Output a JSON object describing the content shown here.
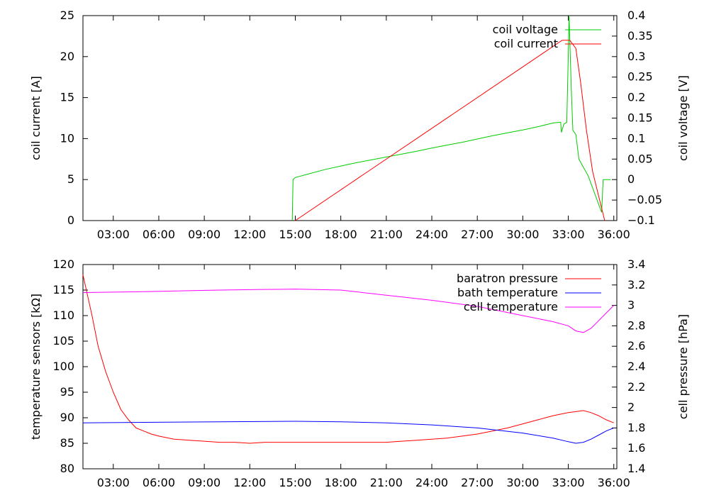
{
  "chart_data": [
    {
      "type": "line",
      "x_ticks": [
        "03:00",
        "06:00",
        "09:00",
        "12:00",
        "15:00",
        "18:00",
        "21:00",
        "24:00",
        "27:00",
        "30:00",
        "33:00",
        "36:00"
      ],
      "xlim_hours": [
        1,
        36.2
      ],
      "ylabel_left": "coil current [A]",
      "ylabel_right": "coil voltage [V]",
      "ylim_left": [
        0,
        25
      ],
      "ylim_right": [
        -0.1,
        0.4
      ],
      "yticks_left": [
        "0",
        "5",
        "10",
        "15",
        "20",
        "25"
      ],
      "yticks_right": [
        "−0.1",
        "−0.05",
        "0",
        "0.05",
        "0.1",
        "0.15",
        "0.2",
        "0.25",
        "0.3",
        "0.35",
        "0.4"
      ],
      "legend_position": "top-right",
      "series": [
        {
          "name": "coil voltage",
          "axis": "right",
          "color": "#00cc00",
          "x": [
            14.8,
            14.85,
            15.0,
            16.0,
            17.0,
            18.0,
            19.0,
            20.0,
            21.0,
            22.0,
            23.0,
            24.0,
            25.0,
            26.0,
            27.0,
            28.0,
            29.0,
            30.0,
            31.0,
            32.0,
            32.5,
            32.55,
            32.7,
            32.9,
            33.0,
            33.05,
            33.2,
            33.3,
            33.5,
            33.7,
            34.0,
            34.3,
            34.7,
            35.0,
            35.2,
            35.3,
            35.8
          ],
          "y": [
            -0.1,
            0.0,
            0.005,
            0.015,
            0.025,
            0.033,
            0.041,
            0.048,
            0.055,
            0.062,
            0.069,
            0.077,
            0.084,
            0.091,
            0.099,
            0.107,
            0.114,
            0.121,
            0.129,
            0.138,
            0.14,
            0.115,
            0.135,
            0.14,
            0.3,
            0.4,
            0.22,
            0.12,
            0.11,
            0.05,
            0.03,
            0.01,
            -0.03,
            -0.06,
            -0.08,
            0.0,
            0.0
          ]
        },
        {
          "name": "coil current",
          "axis": "left",
          "color": "#ff0000",
          "x": [
            15.0,
            32.6,
            33.1,
            33.5,
            33.8,
            34.2,
            34.6,
            35.0,
            35.4
          ],
          "y": [
            0,
            22,
            22,
            21,
            17,
            11,
            6,
            3,
            0
          ]
        }
      ]
    },
    {
      "type": "line",
      "x_ticks": [
        "03:00",
        "06:00",
        "09:00",
        "12:00",
        "15:00",
        "18:00",
        "21:00",
        "24:00",
        "27:00",
        "30:00",
        "33:00",
        "36:00"
      ],
      "xlim_hours": [
        1,
        36.2
      ],
      "ylabel_left": "temperature sensors [kΩ]",
      "ylabel_right": "cell pressure [hPa]",
      "ylim_left": [
        80,
        120
      ],
      "ylim_right": [
        1.4,
        3.4
      ],
      "yticks_left": [
        "80",
        "85",
        "90",
        "95",
        "100",
        "105",
        "110",
        "115",
        "120"
      ],
      "yticks_right": [
        "1.4",
        "1.6",
        "1.8",
        "2",
        "2.2",
        "2.4",
        "2.6",
        "2.8",
        "3",
        "3.2",
        "3.4"
      ],
      "legend_position": "top-right",
      "series": [
        {
          "name": "baratron pressure",
          "axis": "right",
          "color": "#ff0000",
          "x": [
            1.0,
            1.3,
            1.6,
            2.0,
            2.5,
            3.0,
            3.5,
            4.0,
            4.5,
            5.0,
            5.5,
            6.0,
            7.0,
            8.0,
            9.0,
            10.0,
            11.0,
            12.0,
            13.0,
            14.0,
            15.0,
            16.0,
            17.0,
            18.0,
            19.0,
            20.0,
            21.0,
            22.0,
            23.0,
            24.0,
            25.0,
            26.0,
            27.0,
            28.0,
            29.0,
            30.0,
            31.0,
            32.0,
            33.0,
            33.5,
            34.0,
            34.5,
            35.0,
            35.5,
            36.0
          ],
          "y": [
            3.3,
            3.1,
            2.9,
            2.6,
            2.35,
            2.15,
            1.98,
            1.88,
            1.8,
            1.77,
            1.74,
            1.72,
            1.69,
            1.68,
            1.67,
            1.66,
            1.66,
            1.65,
            1.66,
            1.66,
            1.66,
            1.66,
            1.66,
            1.66,
            1.66,
            1.66,
            1.66,
            1.67,
            1.68,
            1.69,
            1.7,
            1.72,
            1.74,
            1.77,
            1.8,
            1.84,
            1.88,
            1.92,
            1.95,
            1.96,
            1.97,
            1.95,
            1.92,
            1.88,
            1.85
          ]
        },
        {
          "name": "bath temperature",
          "axis": "left",
          "color": "#0000ff",
          "x": [
            1.0,
            5.0,
            10.0,
            15.0,
            18.0,
            21.0,
            24.0,
            27.0,
            30.0,
            32.0,
            33.0,
            33.5,
            34.0,
            34.5,
            35.0,
            35.5,
            36.0
          ],
          "y": [
            89.0,
            89.1,
            89.2,
            89.3,
            89.2,
            89.0,
            88.6,
            88.0,
            87.0,
            86.0,
            85.3,
            85.0,
            85.2,
            85.8,
            86.6,
            87.4,
            88.0
          ]
        },
        {
          "name": "cell temperature",
          "axis": "left",
          "color": "#ff00ff",
          "x": [
            1.0,
            5.0,
            10.0,
            15.0,
            18.0,
            21.0,
            24.0,
            27.0,
            30.0,
            32.0,
            33.0,
            33.5,
            34.0,
            34.5,
            35.0,
            35.5,
            36.0
          ],
          "y": [
            114.5,
            114.7,
            115.0,
            115.2,
            115.0,
            114.0,
            113.0,
            111.8,
            110.0,
            108.8,
            108.0,
            107.0,
            106.7,
            107.5,
            109.0,
            110.5,
            112.0
          ]
        }
      ]
    }
  ]
}
